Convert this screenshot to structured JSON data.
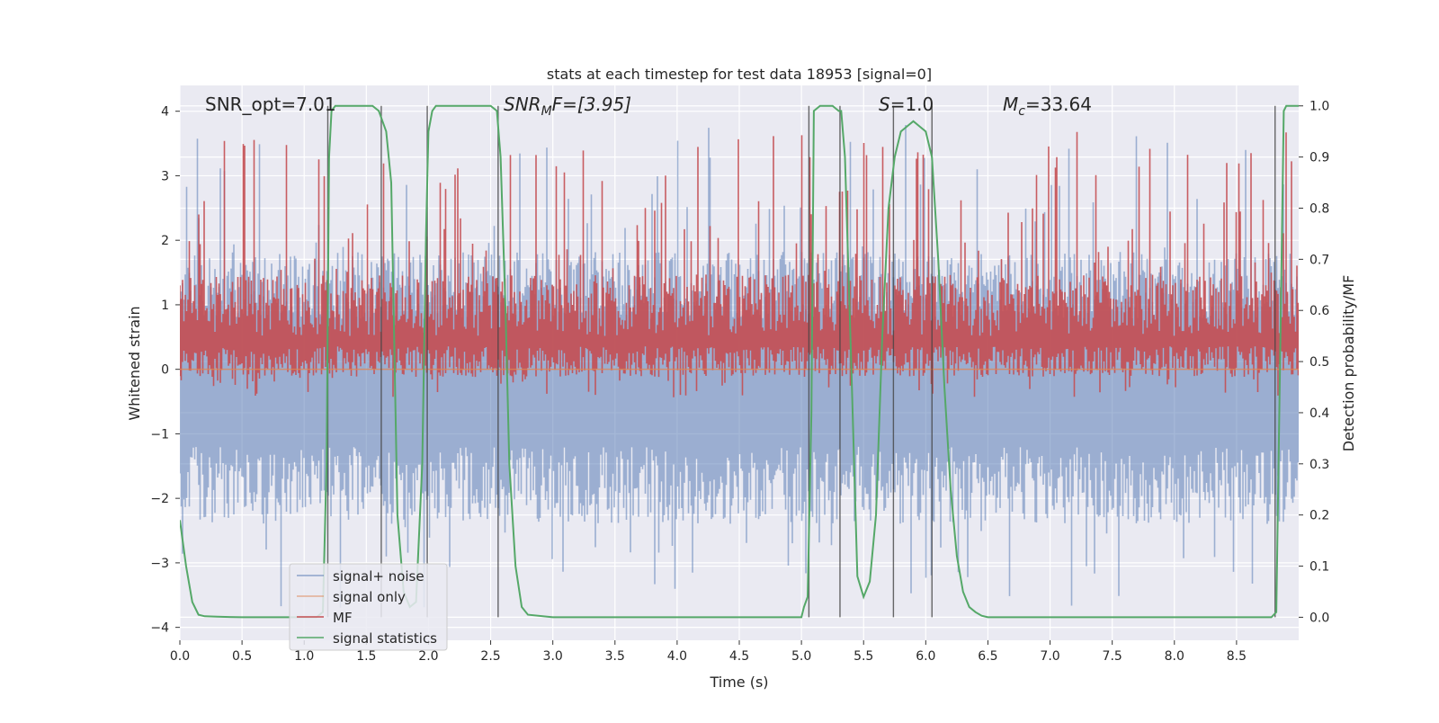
{
  "chart_data": {
    "type": "line",
    "title": "stats at each timestep for test data 18953 [signal=0]",
    "xlabel": "Time (s)",
    "ylabel": "Whitened strain",
    "ylabel_right": "Detection probability/MF",
    "xlim": [
      0.0,
      9.0
    ],
    "ylim": [
      -4.2,
      4.4
    ],
    "ylim_right": [
      -0.045,
      1.04
    ],
    "xticks": [
      "0.0",
      "0.5",
      "1.0",
      "1.5",
      "2.0",
      "2.5",
      "3.0",
      "3.5",
      "4.0",
      "4.5",
      "5.0",
      "5.5",
      "6.0",
      "6.5",
      "7.0",
      "7.5",
      "8.0",
      "8.5"
    ],
    "yticks": [
      "4",
      "3",
      "2",
      "1",
      "0",
      "−1",
      "−2",
      "−3",
      "−4"
    ],
    "yticks_right": [
      "1.0",
      "0.9",
      "0.8",
      "0.7",
      "0.6",
      "0.5",
      "0.4",
      "0.3",
      "0.2",
      "0.1",
      "0.0"
    ],
    "grid": true,
    "legend_position": "lower-left",
    "annotations": {
      "snr_opt": "SNR_opt=7.01",
      "snr_mf_main": "SNR",
      "snr_mf_sub": "M",
      "snr_mf_rest": "F=[3.95]",
      "s_italic": "S",
      "s_rest": "=1.0",
      "mc_main": "M",
      "mc_sub": "c",
      "mc_rest": "=33.64"
    },
    "series": [
      {
        "name": "signal+ noise",
        "color": "#4c72b0"
      },
      {
        "name": "signal only",
        "color": "#dd8452"
      },
      {
        "name": "MF",
        "color": "#c44e52"
      },
      {
        "name": "signal statistics",
        "color": "#55a868",
        "x": [
          0.0,
          0.05,
          0.1,
          0.15,
          0.2,
          0.3,
          0.5,
          0.8,
          1.0,
          1.1,
          1.15,
          1.18,
          1.2,
          1.22,
          1.25,
          1.3,
          1.4,
          1.5,
          1.55,
          1.6,
          1.63,
          1.66,
          1.7,
          1.72,
          1.75,
          1.8,
          1.85,
          1.9,
          1.95,
          1.98,
          2.0,
          2.03,
          2.06,
          2.1,
          2.2,
          2.4,
          2.5,
          2.55,
          2.58,
          2.62,
          2.65,
          2.7,
          2.75,
          2.8,
          3.0,
          4.0,
          4.5,
          5.0,
          5.02,
          5.05,
          5.08,
          5.1,
          5.15,
          5.2,
          5.25,
          5.3,
          5.32,
          5.35,
          5.4,
          5.45,
          5.5,
          5.55,
          5.6,
          5.65,
          5.7,
          5.75,
          5.8,
          5.85,
          5.9,
          5.95,
          6.0,
          6.05,
          6.1,
          6.15,
          6.2,
          6.25,
          6.3,
          6.35,
          6.4,
          6.45,
          6.5,
          7.0,
          7.5,
          8.0,
          8.5,
          8.78,
          8.82,
          8.85,
          8.88,
          8.9,
          8.92,
          8.95,
          9.0
        ],
        "y": [
          0.19,
          0.1,
          0.03,
          0.005,
          0.002,
          0.001,
          0.0,
          0.0,
          0.0,
          0.0,
          0.01,
          0.3,
          0.9,
          0.99,
          1.0,
          1.0,
          1.0,
          1.0,
          1.0,
          0.99,
          0.97,
          0.95,
          0.85,
          0.6,
          0.2,
          0.05,
          0.02,
          0.03,
          0.3,
          0.75,
          0.95,
          0.99,
          1.0,
          1.0,
          1.0,
          1.0,
          1.0,
          0.99,
          0.9,
          0.6,
          0.3,
          0.1,
          0.02,
          0.005,
          0.0,
          0.0,
          0.0,
          0.0,
          0.02,
          0.04,
          0.4,
          0.99,
          1.0,
          1.0,
          1.0,
          0.99,
          0.99,
          0.9,
          0.5,
          0.08,
          0.04,
          0.07,
          0.2,
          0.55,
          0.8,
          0.9,
          0.95,
          0.96,
          0.97,
          0.96,
          0.95,
          0.9,
          0.7,
          0.45,
          0.25,
          0.12,
          0.05,
          0.02,
          0.01,
          0.003,
          0.0,
          0.0,
          0.0,
          0.0,
          0.0,
          0.0,
          0.01,
          0.5,
          0.99,
          1.0,
          1.0,
          1.0,
          1.0
        ]
      }
    ],
    "vlines_x": [
      1.19,
      1.62,
      1.99,
      2.56,
      5.06,
      5.31,
      5.74,
      6.05,
      8.81
    ],
    "signal_only_level": 0.0,
    "noise_envelope": {
      "upper_typical": 1.3,
      "upper_peak": 3.8,
      "lower_typical": -2.0,
      "lower_peak": -3.7
    },
    "mf_envelope": {
      "low": 0.0,
      "high": 0.95
    }
  }
}
